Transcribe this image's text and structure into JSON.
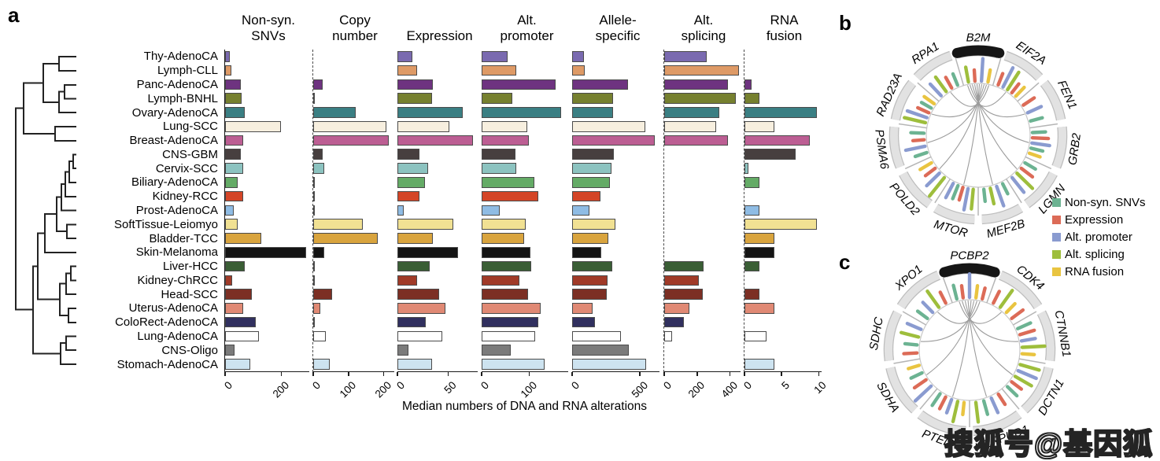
{
  "figure": {
    "panel_a_label": "a",
    "panel_b_label": "b",
    "panel_c_label": "c",
    "watermark": "搜狐号@基因狐"
  },
  "legend": {
    "items": [
      {
        "label": "Non-syn. SNVs",
        "color": "#6cb392"
      },
      {
        "label": "Expression",
        "color": "#dc6b57"
      },
      {
        "label": "Alt. promoter",
        "color": "#8a9bd0"
      },
      {
        "label": "Alt. splicing",
        "color": "#9ebe3c"
      },
      {
        "label": "RNA fusion",
        "color": "#e9c440"
      }
    ]
  },
  "chart_data": [
    {
      "type": "bar",
      "orientation": "horizontal",
      "xlabel": "Median numbers of DNA and RNA alterations",
      "categories": [
        "Thy-AdenoCA",
        "Lymph-CLL",
        "Panc-AdenoCA",
        "Lymph-BNHL",
        "Ovary-AdenoCA",
        "Lung-SCC",
        "Breast-AdenoCA",
        "CNS-GBM",
        "Cervix-SCC",
        "Biliary-AdenoCA",
        "Kidney-RCC",
        "Prost-AdenoCA",
        "SoftTissue-Leiomyo",
        "Bladder-TCC",
        "Skin-Melanoma",
        "Liver-HCC",
        "Kidney-ChRCC",
        "Head-SCC",
        "Uterus-AdenoCA",
        "ColoRect-AdenoCA",
        "Lung-AdenoCA",
        "CNS-Oligo",
        "Stomach-AdenoCA"
      ],
      "category_colors": [
        "#7a6ab0",
        "#de9a66",
        "#6e3380",
        "#76802f",
        "#3a7f83",
        "#f7efdf",
        "#bc5e93",
        "#473f3f",
        "#8cc3c0",
        "#64ab66",
        "#d44527",
        "#8fbce4",
        "#f1e193",
        "#d9a43e",
        "#141414",
        "#3a5e35",
        "#a03a28",
        "#7c2f24",
        "#e08974",
        "#31305f",
        "#ffffff",
        "#7b7b7b",
        "#cde3f0"
      ],
      "columns": [
        {
          "header": [
            "Non-syn.",
            "SNVs"
          ],
          "ticks": [
            0,
            200
          ],
          "axis_max": 300,
          "spine": "solid",
          "values": [
            18,
            22,
            55,
            60,
            70,
            200,
            65,
            55,
            65,
            45,
            65,
            30,
            45,
            130,
            290,
            70,
            25,
            95,
            65,
            110,
            120,
            35,
            90
          ]
        },
        {
          "header": [
            "Copy",
            "number"
          ],
          "ticks": [
            0,
            100,
            200
          ],
          "axis_max": 230,
          "spine": "dashed",
          "values": [
            0,
            0,
            27,
            2,
            120,
            207,
            214,
            27,
            32,
            4,
            1,
            2,
            140,
            182,
            31,
            4,
            1,
            54,
            21,
            5,
            36,
            0,
            46
          ]
        },
        {
          "header": [
            "",
            "Expression"
          ],
          "ticks": [
            0,
            50
          ],
          "axis_max": 79,
          "spine": "none",
          "values": [
            15,
            19,
            35,
            34,
            64,
            51,
            74,
            22,
            30,
            27,
            22,
            6,
            55,
            35,
            60,
            32,
            19,
            41,
            47,
            28,
            44,
            11,
            34
          ]
        },
        {
          "header": [
            "Alt.",
            "promoter"
          ],
          "ticks": [
            0,
            100
          ],
          "axis_max": 182,
          "spine": "none",
          "values": [
            55,
            73,
            156,
            65,
            167,
            96,
            99,
            71,
            73,
            111,
            119,
            38,
            93,
            90,
            102,
            105,
            79,
            97,
            124,
            119,
            113,
            61,
            132
          ]
        },
        {
          "header": [
            "Allele-",
            "specific"
          ],
          "ticks": [
            0,
            500
          ],
          "axis_max": 645,
          "spine": "none",
          "values": [
            90,
            95,
            410,
            300,
            300,
            540,
            610,
            310,
            290,
            280,
            210,
            130,
            320,
            270,
            215,
            295,
            260,
            255,
            150,
            170,
            360,
            420,
            545
          ]
        },
        {
          "header": [
            "Alt.",
            "splicing"
          ],
          "ticks": [
            0,
            200,
            400
          ],
          "axis_max": 465,
          "spine": "dashed",
          "values": [
            260,
            455,
            390,
            435,
            335,
            315,
            390,
            0,
            0,
            0,
            0,
            0,
            0,
            0,
            0,
            240,
            213,
            237,
            155,
            120,
            50,
            0,
            0
          ]
        },
        {
          "header": [
            "RNA",
            "fusion"
          ],
          "ticks": [
            0,
            5,
            10
          ],
          "axis_max": 10.4,
          "spine": "dashed",
          "values": [
            0,
            0,
            1,
            2,
            9.8,
            4,
            8.8,
            6.9,
            0.5,
            2,
            0,
            2,
            9.8,
            4,
            4,
            2,
            0,
            2,
            4,
            0,
            3,
            0,
            4
          ]
        }
      ]
    },
    {
      "type": "circos",
      "highlight_gene": "B2M",
      "tick_palette": {
        "g": "#6cb392",
        "r": "#dc6b57",
        "b": "#8a9bd0",
        "s": "#9ebe3c",
        "y": "#e9c440"
      },
      "genes": [
        {
          "name": "B2M",
          "t": [
            [
              "s",
              0.5
            ],
            [
              "r",
              0.3
            ],
            [
              "b",
              0.9
            ],
            [
              "y",
              0.35
            ]
          ]
        },
        {
          "name": "EIF2A",
          "t": [
            [
              "r",
              0.35
            ],
            [
              "b",
              0.85
            ],
            [
              "s",
              0.8
            ],
            [
              "r",
              0.3
            ],
            [
              "y",
              0.35
            ]
          ]
        },
        {
          "name": "FEN1",
          "t": [
            [
              "r",
              0.4
            ],
            [
              "b",
              0.5
            ],
            [
              "g",
              0.35
            ]
          ]
        },
        {
          "name": "GRB2",
          "t": [
            [
              "g",
              0.4
            ],
            [
              "r",
              0.55
            ],
            [
              "b",
              0.65
            ],
            [
              "g",
              0.35
            ],
            [
              "y",
              0.3
            ]
          ]
        },
        {
          "name": "LGMN",
          "t": [
            [
              "g",
              0.35
            ],
            [
              "r",
              0.45
            ],
            [
              "s",
              0.85
            ],
            [
              "b",
              0.7
            ]
          ]
        },
        {
          "name": "MEF2B",
          "t": [
            [
              "g",
              0.3
            ],
            [
              "b",
              0.8
            ],
            [
              "s",
              0.55
            ],
            [
              "g",
              0.35
            ]
          ]
        },
        {
          "name": "MTOR",
          "t": [
            [
              "s",
              0.75
            ],
            [
              "b",
              0.85
            ],
            [
              "r",
              0.4
            ],
            [
              "g",
              0.45
            ],
            [
              "b",
              0.55
            ]
          ]
        },
        {
          "name": "POLD2",
          "t": [
            [
              "s",
              0.95
            ],
            [
              "b",
              0.65
            ],
            [
              "r",
              0.35
            ],
            [
              "y",
              0.4
            ]
          ]
        },
        {
          "name": "PSMA6",
          "t": [
            [
              "g",
              0.35
            ],
            [
              "b",
              0.75
            ],
            [
              "r",
              0.3
            ],
            [
              "g",
              0.4
            ]
          ]
        },
        {
          "name": "RAD23A",
          "t": [
            [
              "s",
              0.85
            ],
            [
              "b",
              0.8
            ],
            [
              "r",
              0.35
            ],
            [
              "g",
              0.3
            ],
            [
              "y",
              0.35
            ]
          ]
        },
        {
          "name": "RPA1",
          "t": [
            [
              "b",
              0.55
            ],
            [
              "s",
              0.65
            ],
            [
              "r",
              0.35
            ],
            [
              "g",
              0.35
            ]
          ]
        }
      ]
    },
    {
      "type": "circos",
      "highlight_gene": "PCBP2",
      "tick_palette": {
        "g": "#6cb392",
        "r": "#dc6b57",
        "b": "#8a9bd0",
        "s": "#9ebe3c",
        "y": "#e9c440"
      },
      "genes": [
        {
          "name": "PCBP2",
          "t": [
            [
              "g",
              0.45
            ],
            [
              "r",
              0.35
            ],
            [
              "b",
              0.95
            ],
            [
              "y",
              0.35
            ],
            [
              "r",
              0.3
            ]
          ]
        },
        {
          "name": "CDK4",
          "t": [
            [
              "r",
              0.4
            ],
            [
              "s",
              0.8
            ],
            [
              "y",
              0.35
            ],
            [
              "r",
              0.45
            ]
          ]
        },
        {
          "name": "CTNNB1",
          "t": [
            [
              "g",
              0.45
            ],
            [
              "r",
              0.5
            ],
            [
              "b",
              0.45
            ],
            [
              "s",
              0.9
            ],
            [
              "y",
              0.35
            ]
          ]
        },
        {
          "name": "DCTN1",
          "t": [
            [
              "s",
              0.75
            ],
            [
              "b",
              0.75
            ],
            [
              "s",
              0.7
            ],
            [
              "r",
              0.35
            ],
            [
              "g",
              0.4
            ]
          ]
        },
        {
          "name": "HERPUD1",
          "t": [
            [
              "r",
              0.35
            ],
            [
              "b",
              0.55
            ],
            [
              "g",
              0.45
            ],
            [
              "s",
              0.75
            ]
          ]
        },
        {
          "name": "PTEN",
          "t": [
            [
              "y",
              0.35
            ],
            [
              "s",
              0.8
            ],
            [
              "b",
              0.45
            ],
            [
              "r",
              0.4
            ],
            [
              "g",
              0.45
            ]
          ]
        },
        {
          "name": "SDHA",
          "t": [
            [
              "b",
              0.85
            ],
            [
              "r",
              0.45
            ],
            [
              "g",
              0.35
            ],
            [
              "y",
              0.3
            ]
          ]
        },
        {
          "name": "SDHC",
          "t": [
            [
              "r",
              0.4
            ],
            [
              "g",
              0.35
            ],
            [
              "s",
              0.65
            ],
            [
              "b",
              0.5
            ]
          ]
        },
        {
          "name": "XPO1",
          "t": [
            [
              "g",
              0.35
            ],
            [
              "b",
              0.45
            ],
            [
              "s",
              0.75
            ],
            [
              "r",
              0.35
            ]
          ]
        }
      ]
    }
  ]
}
